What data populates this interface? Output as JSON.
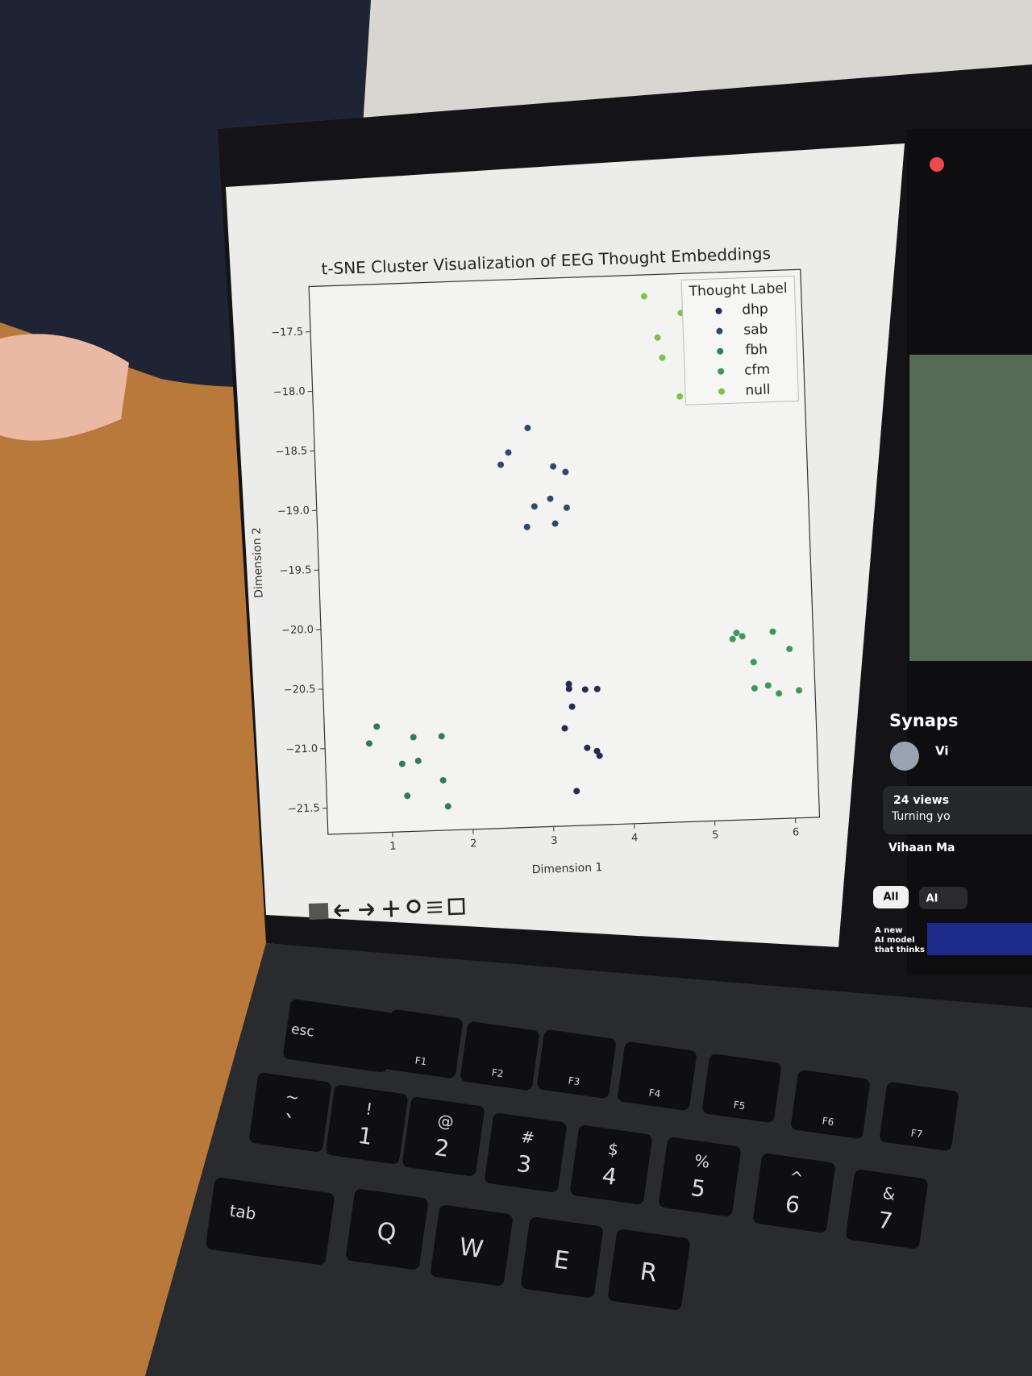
{
  "chart_data": {
    "type": "scatter",
    "title": "t-SNE Cluster Visualization of EEG Thought Embeddings",
    "xlabel": "Dimension 1",
    "ylabel": "Dimension 2",
    "legend_title": "Thought Label",
    "legend": "upper right",
    "xlim": [
      0.2,
      6.3
    ],
    "ylim": [
      -21.72,
      -17.12
    ],
    "xticks": [
      1,
      2,
      3,
      4,
      5,
      6
    ],
    "yticks": [
      {
        "value": -17.5,
        "label": "−17.5"
      },
      {
        "value": -18.0,
        "label": "−18.0"
      },
      {
        "value": -18.5,
        "label": "−18.5"
      },
      {
        "value": -19.0,
        "label": "−19.0"
      },
      {
        "value": -19.5,
        "label": "−19.5"
      },
      {
        "value": -20.0,
        "label": "−20.0"
      },
      {
        "value": -20.5,
        "label": "−20.5"
      },
      {
        "value": -21.0,
        "label": "−21.0"
      },
      {
        "value": -21.5,
        "label": "−21.5"
      }
    ],
    "series": [
      {
        "name": "dhp",
        "color": "#272a52",
        "x": [
          3.25,
          3.25,
          3.45,
          3.6,
          3.28,
          3.18,
          3.45,
          3.57,
          3.6,
          3.3
        ],
        "values": [
          -20.53,
          -20.57,
          -20.58,
          -20.58,
          -20.72,
          -20.9,
          -21.07,
          -21.1,
          -21.14,
          -21.43
        ]
      },
      {
        "name": "sab",
        "color": "#2f4a6e",
        "x": [
          2.85,
          2.6,
          2.5,
          3.15,
          3.3,
          2.9,
          3.1,
          3.3,
          2.8,
          3.15
        ],
        "values": [
          -18.37,
          -18.57,
          -18.67,
          -18.7,
          -18.75,
          -19.03,
          -18.97,
          -19.05,
          -19.2,
          -19.18
        ]
      },
      {
        "name": "fbh",
        "color": "#2e7a64",
        "x": [
          0.85,
          0.75,
          1.3,
          1.65,
          1.15,
          1.35,
          1.65,
          1.2,
          1.7
        ],
        "values": [
          -20.83,
          -20.97,
          -20.93,
          -20.93,
          -21.15,
          -21.13,
          -21.3,
          -21.42,
          -21.52
        ]
      },
      {
        "name": "cfm",
        "color": "#3b9a55",
        "x": [
          5.3,
          5.35,
          5.42,
          5.8,
          6.0,
          5.55,
          5.55,
          5.72,
          5.85,
          6.1
        ],
        "values": [
          -20.2,
          -20.15,
          -20.18,
          -20.15,
          -20.3,
          -20.4,
          -20.62,
          -20.6,
          -20.67,
          -20.65
        ]
      },
      {
        "name": "null",
        "color": "#7dc443",
        "x": [
          4.35,
          4.8,
          5.1,
          5.3,
          4.5,
          4.55,
          4.9,
          4.9,
          4.75
        ],
        "values": [
          -17.3,
          -17.45,
          -17.6,
          -17.7,
          -17.65,
          -17.82,
          -17.95,
          -18.08,
          -18.15
        ]
      }
    ]
  },
  "sidebar": {
    "channel": "Synaps",
    "avatar_text": "Vi",
    "views": "24 views",
    "description": "Turning yo",
    "author": "Vihaan Ma",
    "chips": [
      "All",
      "AI"
    ],
    "thumbnail_text": [
      "A new",
      "AI model",
      "that thinks"
    ]
  },
  "keyboard": {
    "function_row": [
      "esc",
      "F1",
      "F2",
      "F3",
      "F4",
      "F5",
      "F6",
      "F7"
    ],
    "number_row": [
      {
        "top": "~",
        "bottom": "`"
      },
      {
        "top": "!",
        "bottom": "1"
      },
      {
        "top": "@",
        "bottom": "2"
      },
      {
        "top": "#",
        "bottom": "3"
      },
      {
        "top": "$",
        "bottom": "4"
      },
      {
        "top": "%",
        "bottom": "5"
      },
      {
        "top": "^",
        "bottom": "6"
      },
      {
        "top": "&",
        "bottom": "7"
      }
    ],
    "letter_row": [
      "tab",
      "Q",
      "W",
      "E",
      "R"
    ]
  }
}
